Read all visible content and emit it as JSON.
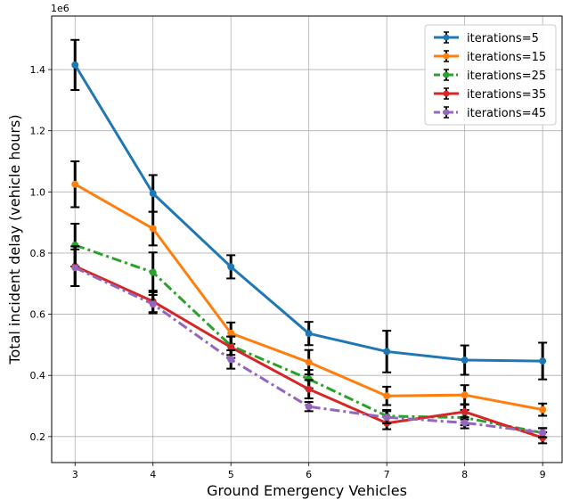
{
  "chart_data": {
    "type": "line",
    "x": [
      3,
      4,
      5,
      6,
      7,
      8,
      9
    ],
    "xticks": [
      "3",
      "4",
      "5",
      "6",
      "7",
      "8",
      "9"
    ],
    "xlabel": "Ground Emergency Vehicles",
    "ylabel": "Total incident delay (vehicle hours)",
    "yscale_label": "1e6",
    "yticks": [
      "0.2",
      "0.4",
      "0.6",
      "0.8",
      "1.0",
      "1.2",
      "1.4"
    ],
    "ytick_values": [
      0.2,
      0.4,
      0.6,
      0.8,
      1.0,
      1.2,
      1.4
    ],
    "ylim": [
      0.115,
      1.575
    ],
    "xlim": [
      2.7,
      9.25
    ],
    "grid": true,
    "legend_position": "top-right",
    "error_bars": true,
    "series": [
      {
        "name": "iterations=5",
        "color": "#1f77b4",
        "linestyle": "solid",
        "values": [
          1.415,
          0.995,
          0.755,
          0.537,
          0.478,
          0.45,
          0.447
        ],
        "errors": [
          0.082,
          0.06,
          0.038,
          0.038,
          0.068,
          0.048,
          0.06
        ]
      },
      {
        "name": "iterations=15",
        "color": "#ff7f0e",
        "linestyle": "solid",
        "values": [
          1.025,
          0.88,
          0.538,
          0.443,
          0.333,
          0.336,
          0.288
        ],
        "errors": [
          0.075,
          0.055,
          0.035,
          0.04,
          0.03,
          0.032,
          0.02
        ]
      },
      {
        "name": "iterations=25",
        "color": "#2ca02c",
        "linestyle": "dashdot",
        "values": [
          0.826,
          0.737,
          0.497,
          0.388,
          0.267,
          0.262,
          0.212
        ],
        "errors": [
          0.07,
          0.065,
          0.03,
          0.03,
          0.02,
          0.025,
          0.015
        ]
      },
      {
        "name": "iterations=35",
        "color": "#d62728",
        "linestyle": "solid",
        "values": [
          0.757,
          0.642,
          0.492,
          0.355,
          0.244,
          0.281,
          0.196
        ],
        "errors": [
          0.065,
          0.035,
          0.035,
          0.03,
          0.02,
          0.025,
          0.018
        ]
      },
      {
        "name": "iterations=45",
        "color": "#9467bd",
        "linestyle": "dashdot",
        "values": [
          0.752,
          0.633,
          0.452,
          0.298,
          0.263,
          0.245,
          0.213
        ],
        "errors": [
          0.06,
          0.03,
          0.03,
          0.015,
          0.02,
          0.018,
          0.015
        ]
      }
    ]
  }
}
